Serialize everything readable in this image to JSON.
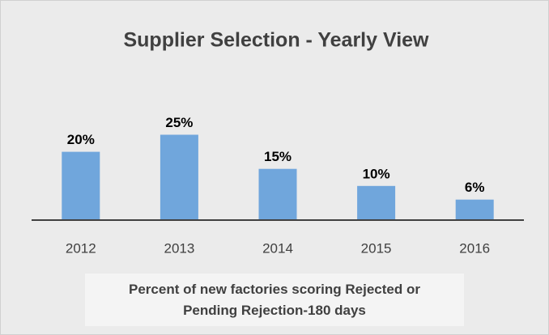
{
  "chart_data": {
    "type": "bar",
    "title": "Supplier Selection - Yearly View",
    "categories": [
      "2012",
      "2013",
      "2014",
      "2015",
      "2016"
    ],
    "values": [
      20,
      25,
      15,
      10,
      6
    ],
    "value_labels": [
      "20%",
      "25%",
      "15%",
      "10%",
      "6%"
    ],
    "color": "#70a6dc",
    "x_label": "Percent of new factories scoring Rejected or Pending Rejection-180 days"
  }
}
